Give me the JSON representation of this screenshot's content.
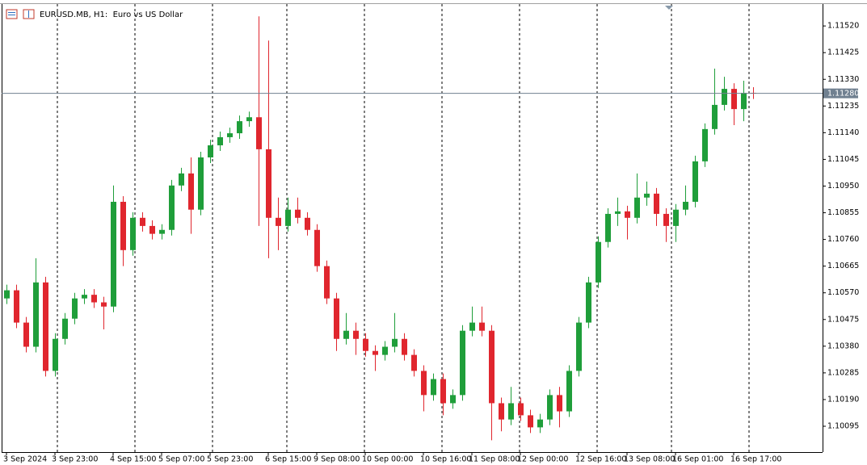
{
  "chart_data": {
    "type": "candlestick",
    "title": "EURUSD.MB, H1:  Euro vs US Dollar",
    "categories": [
      "3 Sep 2024",
      null,
      null,
      null,
      null,
      "3 Sep 23:00",
      null,
      null,
      null,
      null,
      null,
      "4 Sep 15:00",
      null,
      null,
      null,
      null,
      "5 Sep 07:00",
      null,
      null,
      null,
      null,
      "5 Sep 23:00",
      null,
      null,
      null,
      null,
      null,
      "6 Sep 15:00",
      null,
      null,
      null,
      null,
      "9 Sep 08:00",
      null,
      null,
      null,
      null,
      "10 Sep 00:00",
      null,
      null,
      null,
      null,
      null,
      "10 Sep 16:00",
      null,
      null,
      null,
      null,
      "11 Sep 08:00",
      null,
      null,
      null,
      null,
      "12 Sep 00:00",
      null,
      null,
      null,
      null,
      null,
      "12 Sep 16:00",
      null,
      null,
      null,
      null,
      "13 Sep 08:00",
      null,
      null,
      null,
      null,
      "16 Sep 01:00",
      null,
      null,
      null,
      null,
      null,
      "16 Sep 17:00",
      null,
      null
    ],
    "open": [
      1.1055,
      1.10579,
      1.10464,
      1.10378,
      1.10607,
      1.10292,
      1.10406,
      1.10478,
      1.1055,
      1.10563,
      1.10536,
      1.10521,
      1.10894,
      1.10722,
      1.10837,
      1.10808,
      1.1078,
      1.10794,
      1.10952,
      1.10995,
      1.10866,
      1.11052,
      1.11095,
      1.11124,
      1.11138,
      1.11181,
      1.11195,
      1.11081,
      1.10837,
      1.10808,
      1.10866,
      1.10837,
      1.10794,
      1.10665,
      1.1055,
      1.10406,
      1.10435,
      1.10406,
      1.10363,
      1.10349,
      1.10378,
      1.10406,
      1.10349,
      1.10292,
      1.10206,
      1.10263,
      1.10177,
      1.10206,
      1.10435,
      1.10464,
      1.10435,
      1.10177,
      1.10119,
      1.10177,
      1.10134,
      1.10091,
      1.10119,
      1.10206,
      1.10148,
      1.10292,
      1.10464,
      1.10607,
      1.10751,
      1.10851,
      1.1086,
      1.10837,
      1.10909,
      1.10923,
      1.10851,
      1.10808,
      1.10866,
      1.10894,
      1.11038,
      1.11153,
      1.11239,
      1.11296,
      1.11224,
      1.11282
    ],
    "high": [
      1.10599,
      1.10599,
      1.10484,
      1.10693,
      1.10627,
      1.10426,
      1.10498,
      1.1057,
      1.10583,
      1.10583,
      1.10556,
      1.10952,
      1.10914,
      1.10857,
      1.10857,
      1.10828,
      1.10814,
      1.10972,
      1.11015,
      1.11052,
      1.11072,
      1.11115,
      1.11144,
      1.11158,
      1.11201,
      1.11215,
      1.11554,
      1.11468,
      1.10909,
      1.10909,
      1.10909,
      1.10857,
      1.10814,
      1.10685,
      1.1057,
      1.10498,
      1.10464,
      1.10426,
      1.10383,
      1.10398,
      1.10498,
      1.10426,
      1.10369,
      1.10312,
      1.10283,
      1.10283,
      1.10226,
      1.10455,
      1.10521,
      1.10521,
      1.10455,
      1.10197,
      1.10235,
      1.10197,
      1.10154,
      1.10139,
      1.10226,
      1.10235,
      1.10312,
      1.10484,
      1.10627,
      1.10771,
      1.10871,
      1.10909,
      1.1088,
      1.10995,
      1.10966,
      1.10943,
      1.10871,
      1.10886,
      1.10952,
      1.11058,
      1.11173,
      1.11368,
      1.11339,
      1.11316,
      1.11325,
      1.11302
    ],
    "low": [
      1.1053,
      1.10444,
      1.10358,
      1.10358,
      1.10272,
      1.10272,
      1.10386,
      1.10458,
      1.1053,
      1.10516,
      1.1044,
      1.10501,
      1.10665,
      1.10702,
      1.10788,
      1.1076,
      1.1076,
      1.10774,
      1.10932,
      1.1078,
      1.10846,
      1.11032,
      1.11075,
      1.11104,
      1.11118,
      1.11161,
      1.10808,
      1.10693,
      1.10722,
      1.10788,
      1.10817,
      1.10774,
      1.10645,
      1.1053,
      1.10363,
      1.10386,
      1.10349,
      1.10343,
      1.10292,
      1.10329,
      1.10358,
      1.10329,
      1.10272,
      1.10148,
      1.10186,
      1.10134,
      1.10157,
      1.10186,
      1.10415,
      1.10415,
      1.10045,
      1.10077,
      1.10099,
      1.10114,
      1.10071,
      1.10071,
      1.10099,
      1.10091,
      1.10128,
      1.10272,
      1.10444,
      1.10587,
      1.10731,
      1.10808,
      1.1076,
      1.10817,
      1.1088,
      1.10808,
      1.10751,
      1.10751,
      1.10846,
      1.10874,
      1.11018,
      1.11133,
      1.11219,
      1.11167,
      1.11181,
      1.1126
    ],
    "close": [
      1.10579,
      1.10464,
      1.10378,
      1.10607,
      1.10292,
      1.10406,
      1.10478,
      1.1055,
      1.10563,
      1.10536,
      1.10521,
      1.10894,
      1.10722,
      1.10837,
      1.10808,
      1.1078,
      1.10794,
      1.10952,
      1.10995,
      1.10866,
      1.11052,
      1.11095,
      1.11124,
      1.11138,
      1.11181,
      1.11195,
      1.11081,
      1.10837,
      1.10808,
      1.10866,
      1.10837,
      1.10794,
      1.10665,
      1.1055,
      1.10406,
      1.10435,
      1.10406,
      1.10363,
      1.10349,
      1.10378,
      1.10406,
      1.10349,
      1.10292,
      1.10206,
      1.10263,
      1.10177,
      1.10206,
      1.10435,
      1.10464,
      1.10435,
      1.10177,
      1.10119,
      1.10177,
      1.10134,
      1.10091,
      1.10119,
      1.10206,
      1.10148,
      1.10292,
      1.10464,
      1.10607,
      1.10751,
      1.10851,
      1.1086,
      1.10837,
      1.10909,
      1.10923,
      1.10851,
      1.10808,
      1.10866,
      1.10894,
      1.11038,
      1.11153,
      1.11239,
      1.11296,
      1.11224,
      1.11282,
      1.1128
    ],
    "up_color": "#1f9e3a",
    "down_color": "#e0262e",
    "ylim": [
      1.10003,
      1.11598
    ],
    "yticks": [
      {
        "value": 1.1152,
        "label": "1.11520"
      },
      1.11425,
      {
        "value": 1.1133,
        "label": "1.11330"
      },
      1.11235,
      {
        "value": 1.1114,
        "label": "1.11140"
      },
      1.11045,
      {
        "value": 1.1095,
        "label": "1.10950"
      },
      1.10855,
      {
        "value": 1.1076,
        "label": "1.10760"
      },
      1.10665,
      {
        "value": 1.1057,
        "label": "1.10570"
      },
      1.10475,
      {
        "value": 1.1038,
        "label": "1.10380"
      },
      1.10285,
      {
        "value": 1.1019,
        "label": "1.10190"
      },
      1.10095
    ],
    "current_price": {
      "value": 1.1128,
      "label": "1.11280"
    },
    "current_price_color": "#708090"
  }
}
